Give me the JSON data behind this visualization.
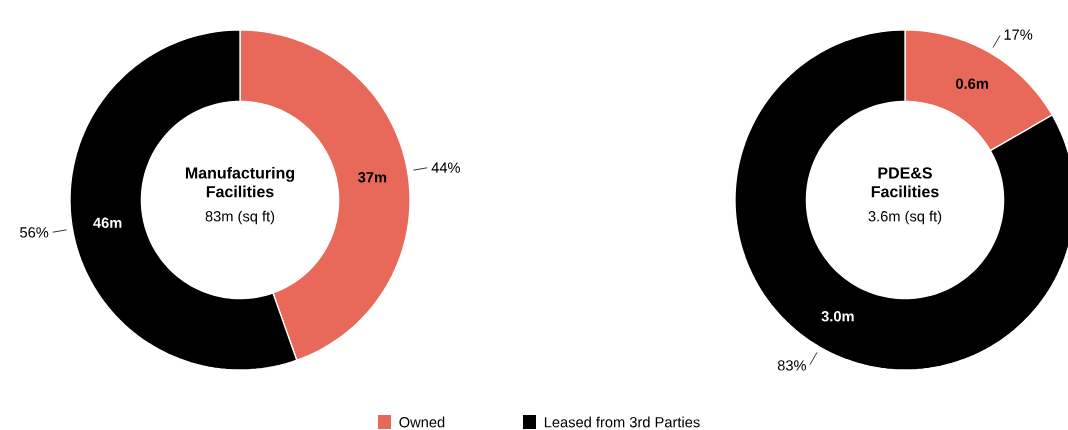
{
  "chart_data": [
    {
      "type": "donut",
      "title": "Manufacturing Facilities",
      "subtitle": "83m (sq ft)",
      "categories": [
        "Owned",
        "Leased from 3rd Parties"
      ],
      "values": [
        37,
        46
      ],
      "colors": [
        "#e8695a",
        "#000000"
      ],
      "value_labels": [
        "37m",
        "46m"
      ],
      "annotations": [
        "44%",
        "56%"
      ],
      "legend": "bottom"
    },
    {
      "type": "donut",
      "title": "PDE&S Facilities",
      "subtitle": "3.6m (sq ft)",
      "categories": [
        null,
        null
      ],
      "values": [
        0.6,
        3.0
      ],
      "colors": [
        "#e8695a",
        "#000000"
      ],
      "value_labels": [
        "0.6m",
        "3.0m"
      ],
      "annotations": [
        "17%",
        "83%"
      ]
    }
  ]
}
